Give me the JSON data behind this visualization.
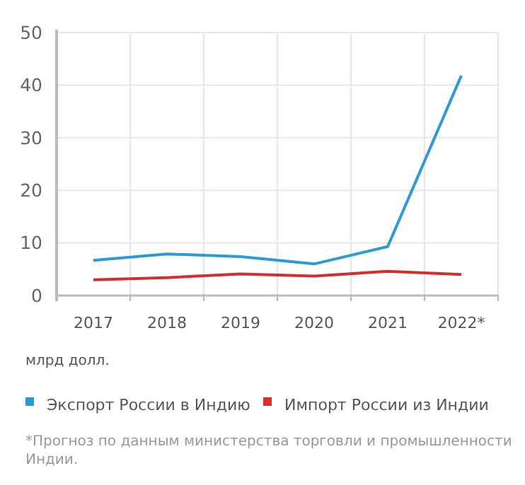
{
  "chart_data": {
    "type": "line",
    "ylabel": "млрд долл.",
    "categories": [
      "2017",
      "2018",
      "2019",
      "2020",
      "2021",
      "2022*"
    ],
    "series": [
      {
        "name": "Экспорт России в Индию",
        "color": "#2d9ad6",
        "values": [
          6.7,
          7.9,
          7.4,
          6.0,
          9.3,
          41.8
        ]
      },
      {
        "name": "Импорт России из Индии",
        "color": "#d42e2e",
        "values": [
          3.0,
          3.4,
          4.1,
          3.7,
          4.6,
          4.0
        ]
      }
    ],
    "ylim": [
      0,
      50
    ],
    "yticks": [
      0,
      10,
      20,
      30,
      40,
      50
    ],
    "grid": true,
    "legend": "bottom",
    "marker": "none",
    "line_style": "solid",
    "annotations": [
      "*Прогноз по данным министерства торговли и промышленности Индии."
    ]
  }
}
